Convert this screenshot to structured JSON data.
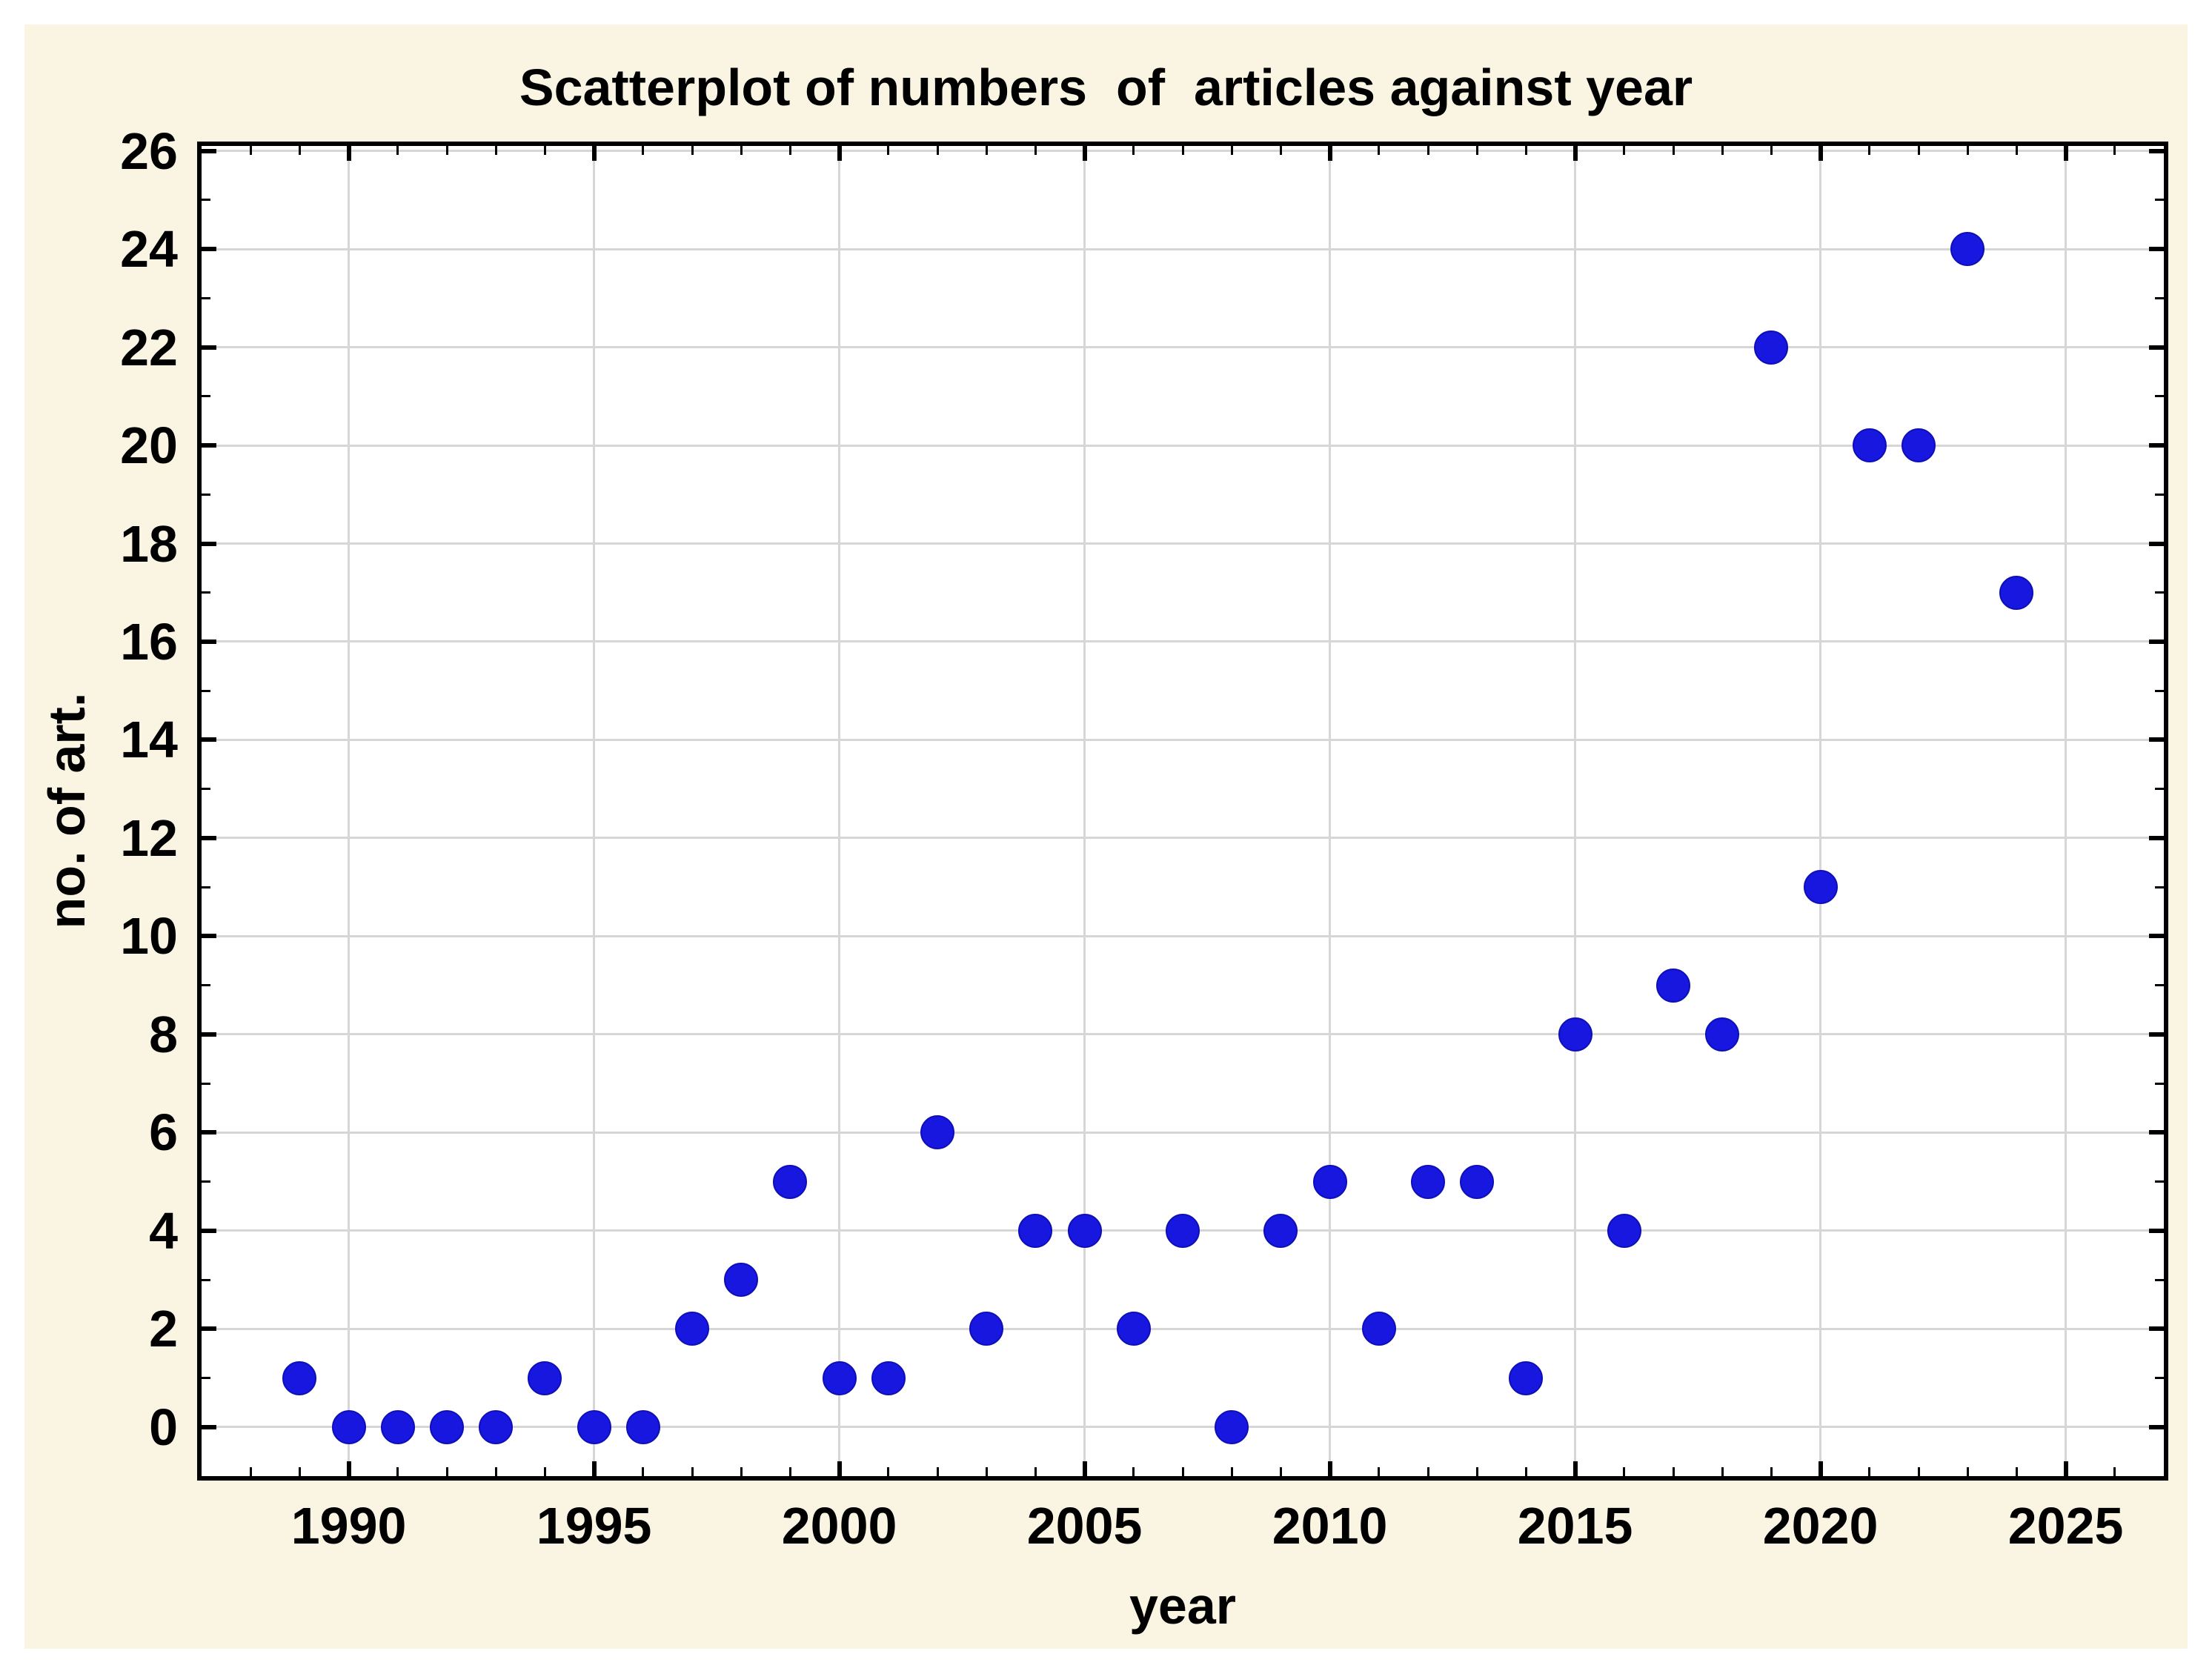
{
  "page": {
    "background_color": "#ffffff",
    "panel_color": "#faf4e3"
  },
  "chart_data": {
    "type": "scatter",
    "title": "Scatterplot of numbers  of  articles against year",
    "xlabel": "year",
    "ylabel": "no. of art.",
    "xlim": [
      1987,
      2027
    ],
    "ylim": [
      -1,
      26.1
    ],
    "x_major_ticks": [
      1990,
      1995,
      2000,
      2005,
      2010,
      2015,
      2020,
      2025
    ],
    "y_major_ticks": [
      0,
      2,
      4,
      6,
      8,
      10,
      12,
      14,
      16,
      18,
      20,
      22,
      24,
      26
    ],
    "x_minor_tick_step": 1,
    "y_minor_tick_step": 1,
    "grid": "major-both",
    "legend": null,
    "marker_color": "#1717e0",
    "marker_edge_color": "#0f0fba",
    "gridline_color": "#d6d6d6",
    "axis_color": "#000000",
    "text_color": "#000000",
    "points": [
      {
        "year": 1989,
        "articles": 1
      },
      {
        "year": 1990,
        "articles": 0
      },
      {
        "year": 1991,
        "articles": 0
      },
      {
        "year": 1992,
        "articles": 0
      },
      {
        "year": 1993,
        "articles": 0
      },
      {
        "year": 1994,
        "articles": 1
      },
      {
        "year": 1995,
        "articles": 0
      },
      {
        "year": 1996,
        "articles": 0
      },
      {
        "year": 1997,
        "articles": 2
      },
      {
        "year": 1998,
        "articles": 3
      },
      {
        "year": 1999,
        "articles": 5
      },
      {
        "year": 2000,
        "articles": 1
      },
      {
        "year": 2001,
        "articles": 1
      },
      {
        "year": 2002,
        "articles": 6
      },
      {
        "year": 2003,
        "articles": 2
      },
      {
        "year": 2004,
        "articles": 4
      },
      {
        "year": 2005,
        "articles": 4
      },
      {
        "year": 2006,
        "articles": 2
      },
      {
        "year": 2007,
        "articles": 4
      },
      {
        "year": 2008,
        "articles": 0
      },
      {
        "year": 2009,
        "articles": 4
      },
      {
        "year": 2010,
        "articles": 5
      },
      {
        "year": 2011,
        "articles": 2
      },
      {
        "year": 2012,
        "articles": 5
      },
      {
        "year": 2013,
        "articles": 5
      },
      {
        "year": 2014,
        "articles": 1
      },
      {
        "year": 2015,
        "articles": 8
      },
      {
        "year": 2016,
        "articles": 4
      },
      {
        "year": 2017,
        "articles": 9
      },
      {
        "year": 2018,
        "articles": 8
      },
      {
        "year": 2019,
        "articles": 22
      },
      {
        "year": 2020,
        "articles": 11
      },
      {
        "year": 2021,
        "articles": 20
      },
      {
        "year": 2022,
        "articles": 20
      },
      {
        "year": 2023,
        "articles": 24
      },
      {
        "year": 2024,
        "articles": 17
      }
    ]
  }
}
